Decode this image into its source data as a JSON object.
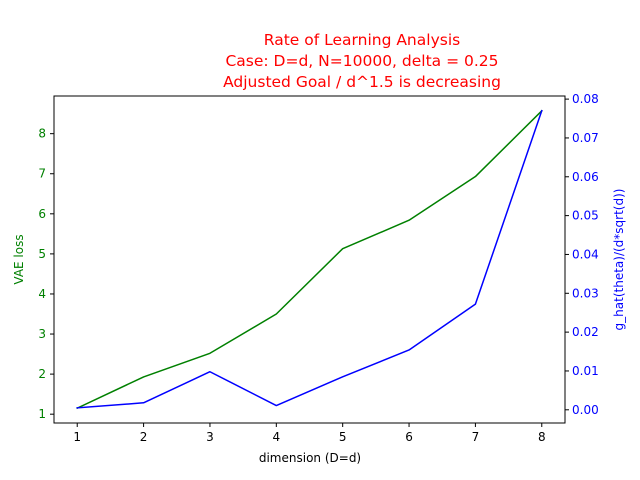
{
  "chart_data": {
    "type": "line",
    "title_lines": [
      "Rate of Learning Analysis",
      "Case: D=d, N=10000, delta = 0.25",
      "Adjusted Goal / d^1.5 is decreasing"
    ],
    "xlabel": "dimension (D=d)",
    "ylabel_left": "VAE loss",
    "ylabel_right": "g_hat(theta)/(d*sqrt(d))",
    "x": [
      1,
      2,
      3,
      4,
      5,
      6,
      7,
      8
    ],
    "xlim": [
      0.65,
      8.35
    ],
    "x_ticks": [
      1,
      2,
      3,
      4,
      5,
      6,
      7,
      8
    ],
    "grid": false,
    "series": [
      {
        "axis": "left",
        "color": "#008000",
        "values": [
          1.15,
          1.93,
          2.52,
          3.5,
          5.13,
          5.84,
          6.93,
          8.57
        ]
      },
      {
        "axis": "right",
        "color": "#0000ff",
        "values": [
          0.0005,
          0.0018,
          0.0098,
          0.0011,
          0.0085,
          0.0154,
          0.0272,
          0.077
        ]
      }
    ],
    "y_left": {
      "lim": [
        0.78,
        8.94
      ],
      "ticks": [
        1,
        2,
        3,
        4,
        5,
        6,
        7,
        8
      ],
      "tick_labels": [
        "1",
        "2",
        "3",
        "4",
        "5",
        "6",
        "7",
        "8"
      ],
      "color": "#008000"
    },
    "y_right": {
      "lim": [
        -0.0034,
        0.0808
      ],
      "ticks": [
        0.0,
        0.01,
        0.02,
        0.03,
        0.04,
        0.05,
        0.06,
        0.07,
        0.08
      ],
      "tick_labels": [
        "0.00",
        "0.01",
        "0.02",
        "0.03",
        "0.04",
        "0.05",
        "0.06",
        "0.07",
        "0.08"
      ],
      "color": "#0000ff"
    }
  }
}
